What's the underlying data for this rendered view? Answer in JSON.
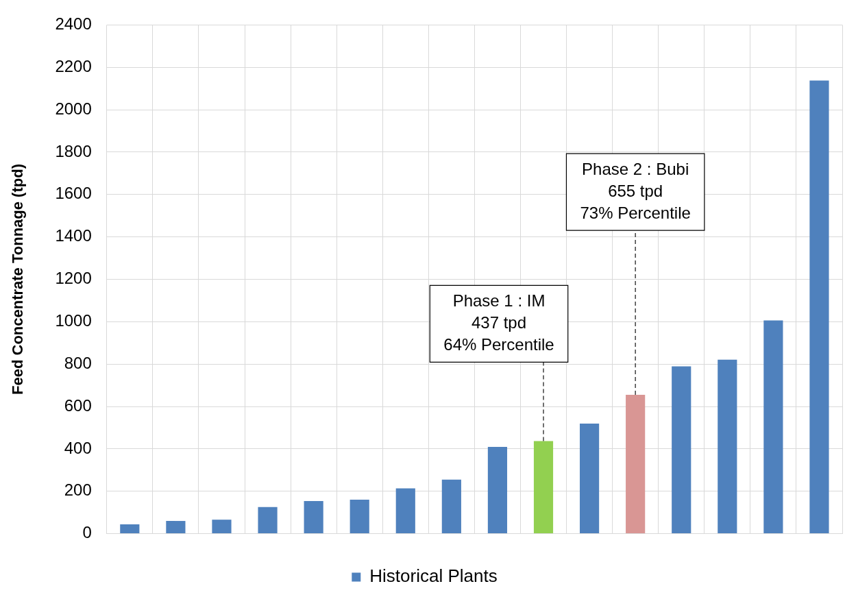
{
  "chart_data": {
    "type": "bar",
    "ylabel": "Feed Concentrate Tonnage (tpd)",
    "categories": [
      null,
      null,
      null,
      null,
      null,
      null,
      null,
      null,
      null,
      null,
      null,
      null,
      null,
      null,
      null,
      null
    ],
    "series": [
      {
        "name": "Historical Plants",
        "color": "#4f81bd",
        "colors": [
          "#4f81bd",
          "#4f81bd",
          "#4f81bd",
          "#4f81bd",
          "#4f81bd",
          "#4f81bd",
          "#4f81bd",
          "#4f81bd",
          "#4f81bd",
          "#92d050",
          "#4f81bd",
          "#d99694",
          "#4f81bd",
          "#4f81bd",
          "#4f81bd",
          "#4f81bd"
        ],
        "values": [
          44,
          60,
          66,
          126,
          154,
          160,
          214,
          255,
          409,
          437,
          519,
          655,
          789,
          821,
          1006,
          2138
        ]
      }
    ],
    "ylim": [
      0,
      2400
    ],
    "yticks": [
      0,
      200,
      400,
      600,
      800,
      1000,
      1200,
      1400,
      1600,
      1800,
      2000,
      2200,
      2400
    ],
    "grid": true,
    "legend": "bottom",
    "annotations": [
      "Phase 1 : IM\n437 tpd\n64% Percentile",
      "Phase 2 : Bubi\n655 tpd\n73% Percentile"
    ]
  }
}
